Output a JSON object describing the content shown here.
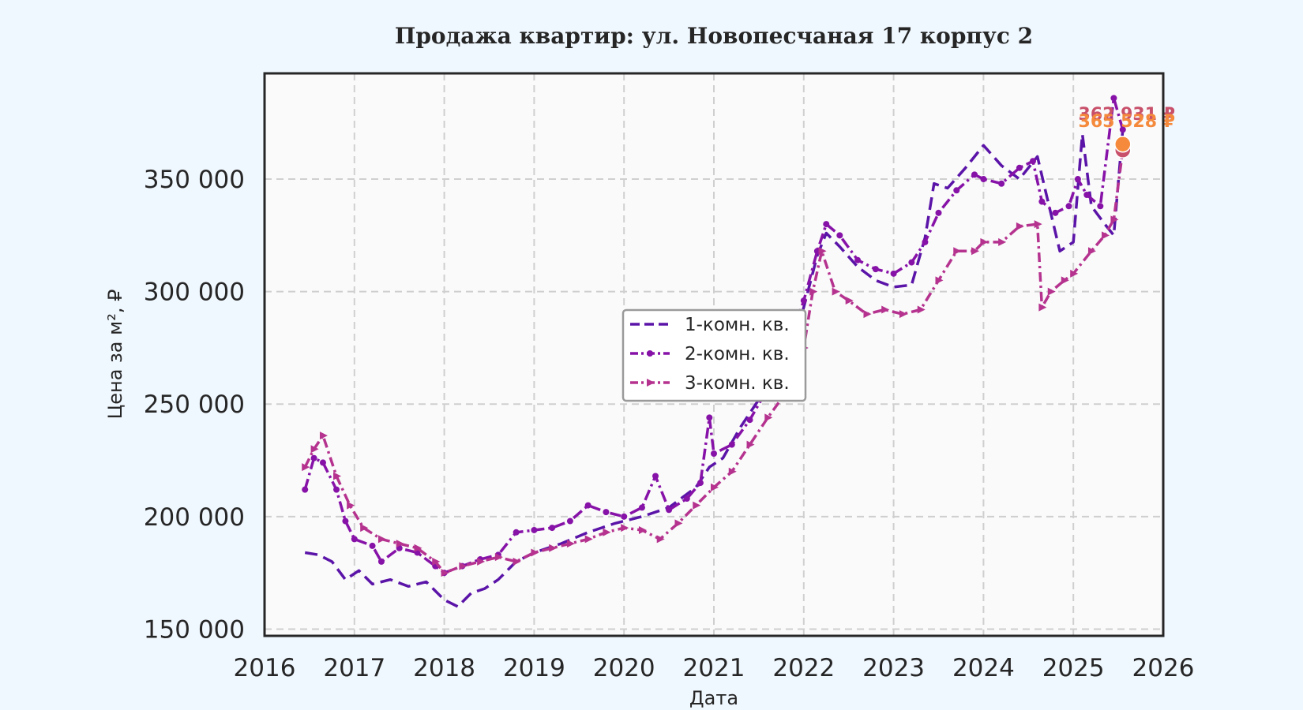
{
  "chart_data": {
    "type": "line",
    "title": "Продажа квартир: ул. Новопесчаная 17 корпус 2",
    "xlabel": "Дата",
    "ylabel": "Цена за м², ₽",
    "xlim": [
      2016,
      2026
    ],
    "ylim": [
      147000,
      397000
    ],
    "x_ticks": [
      2016,
      2017,
      2018,
      2019,
      2020,
      2021,
      2022,
      2023,
      2024,
      2025,
      2026
    ],
    "x_tick_labels": [
      "2016",
      "2017",
      "2018",
      "2019",
      "2020",
      "2021",
      "2022",
      "2023",
      "2024",
      "2025",
      "2026"
    ],
    "y_ticks": [
      150000,
      200000,
      250000,
      300000,
      350000
    ],
    "y_tick_labels": [
      "150 000",
      "200 000",
      "250 000",
      "300 000",
      "350 000"
    ],
    "grid": true,
    "legend_position": "center",
    "series": [
      {
        "name": "1-комн. кв.",
        "color": "#5b14a8",
        "style": "dashed",
        "x": [
          2016.45,
          2016.6,
          2016.75,
          2016.9,
          2017.05,
          2017.2,
          2017.4,
          2017.6,
          2017.8,
          2018.0,
          2018.15,
          2018.3,
          2018.45,
          2018.6,
          2018.8,
          2019.0,
          2019.3,
          2019.6,
          2019.9,
          2020.2,
          2020.5,
          2020.8,
          2020.95,
          2021.1,
          2021.3,
          2021.5,
          2021.7,
          2021.9,
          2022.0,
          2022.15,
          2022.25,
          2022.4,
          2022.6,
          2022.8,
          2023.0,
          2023.2,
          2023.35,
          2023.45,
          2023.6,
          2023.8,
          2024.0,
          2024.2,
          2024.4,
          2024.6,
          2024.7,
          2024.85,
          2025.0,
          2025.1,
          2025.2,
          2025.35,
          2025.45,
          2025.55
        ],
        "y": [
          184000,
          183000,
          180000,
          172000,
          176000,
          170000,
          172000,
          169000,
          171000,
          163000,
          160000,
          166000,
          168000,
          172000,
          180000,
          184000,
          188000,
          193000,
          197000,
          200000,
          204000,
          213000,
          222000,
          226000,
          240000,
          252000,
          262000,
          280000,
          293000,
          316000,
          326000,
          320000,
          311000,
          305000,
          302000,
          303000,
          324000,
          348000,
          346000,
          355000,
          365000,
          356000,
          350000,
          360000,
          343000,
          318000,
          322000,
          370000,
          338000,
          330000,
          325000,
          372000
        ]
      },
      {
        "name": "2-комн. кв.",
        "color": "#8712a8",
        "style": "dash-dot circles",
        "x": [
          2016.45,
          2016.55,
          2016.65,
          2016.8,
          2016.9,
          2017.0,
          2017.2,
          2017.3,
          2017.5,
          2017.7,
          2017.9,
          2018.0,
          2018.2,
          2018.4,
          2018.6,
          2018.8,
          2019.0,
          2019.2,
          2019.4,
          2019.6,
          2019.8,
          2020.0,
          2020.2,
          2020.35,
          2020.5,
          2020.7,
          2020.85,
          2020.95,
          2021.0,
          2021.2,
          2021.4,
          2021.6,
          2021.8,
          2022.0,
          2022.15,
          2022.25,
          2022.4,
          2022.6,
          2022.8,
          2023.0,
          2023.2,
          2023.35,
          2023.5,
          2023.7,
          2023.9,
          2024.0,
          2024.2,
          2024.4,
          2024.55,
          2024.65,
          2024.8,
          2024.95,
          2025.05,
          2025.15,
          2025.3,
          2025.45,
          2025.55
        ],
        "y": [
          212000,
          226000,
          224000,
          212000,
          198000,
          190000,
          187000,
          180000,
          186000,
          184000,
          178000,
          175000,
          178000,
          181000,
          183000,
          193000,
          194000,
          195000,
          198000,
          205000,
          202000,
          200000,
          204000,
          218000,
          203000,
          208000,
          215000,
          244000,
          228000,
          232000,
          243000,
          257000,
          272000,
          296000,
          318000,
          330000,
          325000,
          314000,
          310000,
          308000,
          313000,
          322000,
          335000,
          345000,
          352000,
          350000,
          348000,
          355000,
          358000,
          340000,
          335000,
          338000,
          350000,
          343000,
          338000,
          386000,
          372000
        ]
      },
      {
        "name": "3-комн. кв.",
        "color": "#b5338f",
        "style": "dash-dot triangles",
        "x": [
          2016.45,
          2016.55,
          2016.65,
          2016.8,
          2016.95,
          2017.1,
          2017.3,
          2017.5,
          2017.7,
          2017.9,
          2018.0,
          2018.2,
          2018.4,
          2018.6,
          2018.8,
          2019.0,
          2019.2,
          2019.4,
          2019.6,
          2019.8,
          2020.0,
          2020.2,
          2020.4,
          2020.6,
          2020.8,
          2021.0,
          2021.2,
          2021.4,
          2021.6,
          2021.8,
          2022.0,
          2022.1,
          2022.2,
          2022.35,
          2022.5,
          2022.7,
          2022.9,
          2023.1,
          2023.3,
          2023.5,
          2023.7,
          2023.9,
          2024.0,
          2024.2,
          2024.4,
          2024.6,
          2024.65,
          2024.75,
          2024.9,
          2025.0,
          2025.2,
          2025.35,
          2025.45,
          2025.55
        ],
        "y": [
          222000,
          230000,
          236000,
          218000,
          205000,
          195000,
          190000,
          188000,
          186000,
          180000,
          175000,
          178000,
          180000,
          182000,
          180000,
          184000,
          186000,
          188000,
          190000,
          193000,
          195000,
          194000,
          190000,
          197000,
          205000,
          213000,
          220000,
          232000,
          244000,
          255000,
          275000,
          300000,
          318000,
          300000,
          296000,
          290000,
          292000,
          290000,
          292000,
          305000,
          318000,
          318000,
          322000,
          322000,
          329000,
          330000,
          293000,
          300000,
          305000,
          308000,
          318000,
          325000,
          332000,
          363000
        ]
      }
    ],
    "end_points": [
      {
        "label": "362 931 ₽",
        "value": 362931,
        "x": 2025.55,
        "color": "#c8506a"
      },
      {
        "label": "365 528 ₽",
        "value": 365528,
        "x": 2025.55,
        "color": "#f58a3c"
      }
    ]
  }
}
